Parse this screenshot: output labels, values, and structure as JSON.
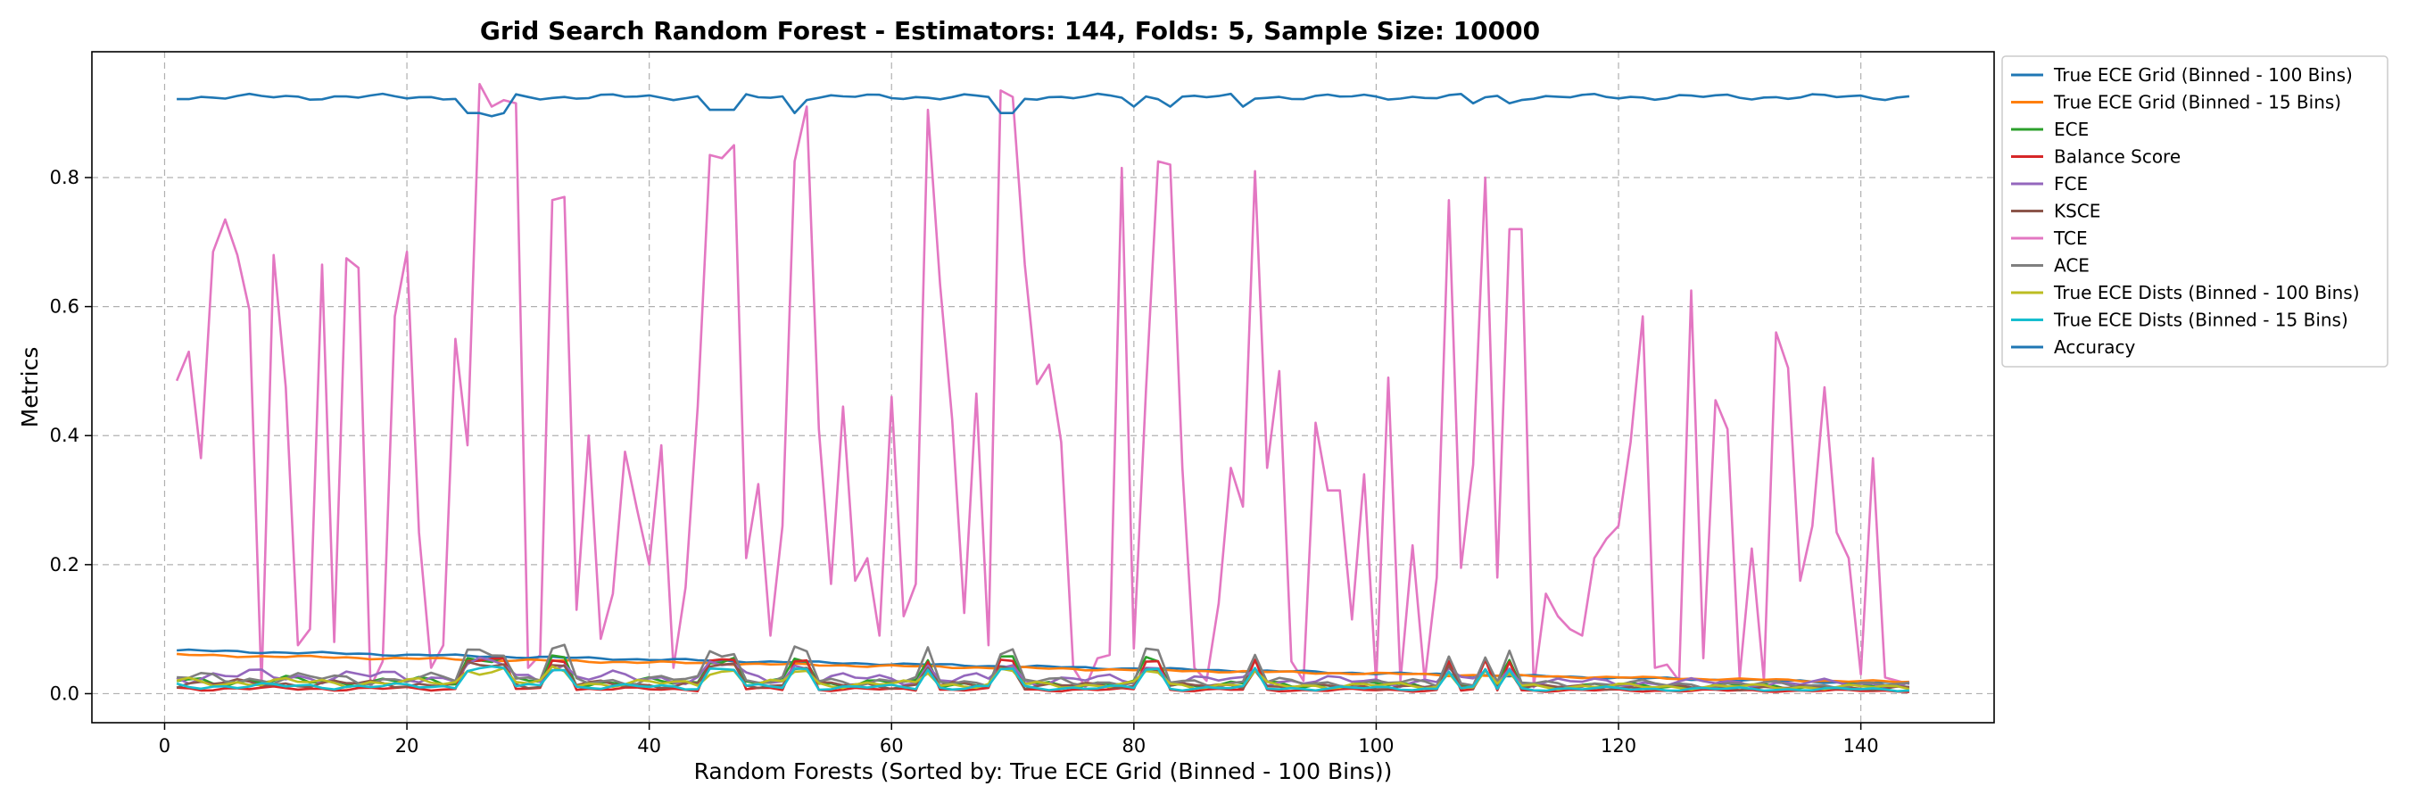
{
  "chart_data": {
    "type": "line",
    "title": "Grid Search Random Forest - Estimators: 144, Folds: 5, Sample Size: 10000",
    "xlabel": "Random Forests (Sorted by: True ECE Grid (Binned - 100 Bins))",
    "ylabel": "Metrics",
    "xlim": [
      -6,
      151
    ],
    "ylim": [
      -0.045,
      0.995
    ],
    "x_ticks": [
      0,
      20,
      40,
      60,
      80,
      100,
      120,
      140
    ],
    "y_ticks": [
      0.0,
      0.2,
      0.4,
      0.6,
      0.8
    ],
    "grid": true,
    "legend_position": "outside-right",
    "x_start": 1,
    "n_points": 144,
    "series": [
      {
        "name": "True ECE Grid (Binned - 100 Bins)",
        "color": "#1f77b4",
        "start": 0.067,
        "end": 0.016
      },
      {
        "name": "True ECE Grid (Binned - 15 Bins)",
        "color": "#ff7f0e",
        "start": 0.06,
        "end": 0.018
      },
      {
        "name": "ECE",
        "color": "#2ca02c",
        "base": 0.02
      },
      {
        "name": "Balance Score",
        "color": "#d62728",
        "base": 0.008
      },
      {
        "name": "FCE",
        "color": "#9467bd",
        "base": 0.028
      },
      {
        "name": "KSCE",
        "color": "#8c564b",
        "base": 0.016
      },
      {
        "name": "TCE",
        "color": "#e377c2",
        "values": [
          0.485,
          0.53,
          0.365,
          0.685,
          0.735,
          0.68,
          0.595,
          0.01,
          0.68,
          0.475,
          0.075,
          0.1,
          0.665,
          0.08,
          0.675,
          0.66,
          0.01,
          0.05,
          0.585,
          0.685,
          0.25,
          0.04,
          0.075,
          0.55,
          0.385,
          0.945,
          0.91,
          0.92,
          0.915,
          0.04,
          0.06,
          0.765,
          0.77,
          0.13,
          0.4,
          0.085,
          0.155,
          0.375,
          0.285,
          0.2,
          0.385,
          0.04,
          0.165,
          0.445,
          0.835,
          0.83,
          0.85,
          0.21,
          0.325,
          0.09,
          0.26,
          0.825,
          0.91,
          0.41,
          0.17,
          0.445,
          0.175,
          0.21,
          0.09,
          0.46,
          0.12,
          0.17,
          0.905,
          0.635,
          0.425,
          0.125,
          0.465,
          0.075,
          0.935,
          0.925,
          0.665,
          0.48,
          0.51,
          0.39,
          0.04,
          0.01,
          0.055,
          0.06,
          0.815,
          0.07,
          0.47,
          0.825,
          0.82,
          0.35,
          0.04,
          0.02,
          0.14,
          0.35,
          0.29,
          0.81,
          0.35,
          0.5,
          0.05,
          0.02,
          0.42,
          0.315,
          0.315,
          0.115,
          0.34,
          0.015,
          0.49,
          0.02,
          0.23,
          0.02,
          0.18,
          0.765,
          0.195,
          0.355,
          0.8,
          0.18,
          0.72,
          0.72,
          0.01,
          0.155,
          0.12,
          0.1,
          0.09,
          0.21,
          0.24,
          0.26,
          0.39,
          0.585,
          0.04,
          0.045,
          0.02,
          0.625,
          0.055,
          0.455,
          0.41,
          0.025,
          0.225,
          0.02,
          0.56,
          0.505,
          0.175,
          0.26,
          0.475,
          0.25,
          0.21,
          0.03,
          0.365,
          0.025,
          0.02,
          0.015
        ]
      },
      {
        "name": "ACE",
        "color": "#7f7f7f",
        "base": 0.024
      },
      {
        "name": "True ECE Dists (Binned - 100 Bins)",
        "color": "#bcbd22",
        "base": 0.018
      },
      {
        "name": "True ECE Dists (Binned - 15 Bins)",
        "color": "#17becf",
        "base": 0.012
      },
      {
        "name": "Accuracy",
        "color": "#1f77b4",
        "base": 0.925,
        "dips": [
          [
            24,
            0.9
          ],
          [
            25,
            0.9
          ],
          [
            26,
            0.895
          ],
          [
            27,
            0.9
          ],
          [
            44,
            0.905
          ],
          [
            45,
            0.905
          ],
          [
            46,
            0.905
          ],
          [
            51,
            0.9
          ],
          [
            68,
            0.9
          ],
          [
            69,
            0.9
          ],
          [
            79,
            0.91
          ],
          [
            82,
            0.91
          ],
          [
            88,
            0.91
          ],
          [
            107,
            0.915
          ],
          [
            110,
            0.915
          ]
        ]
      }
    ],
    "spikes": [
      25,
      26,
      27,
      28,
      32,
      33,
      45,
      46,
      47,
      52,
      53,
      63,
      69,
      70,
      81,
      82,
      90,
      106,
      109,
      111
    ]
  }
}
